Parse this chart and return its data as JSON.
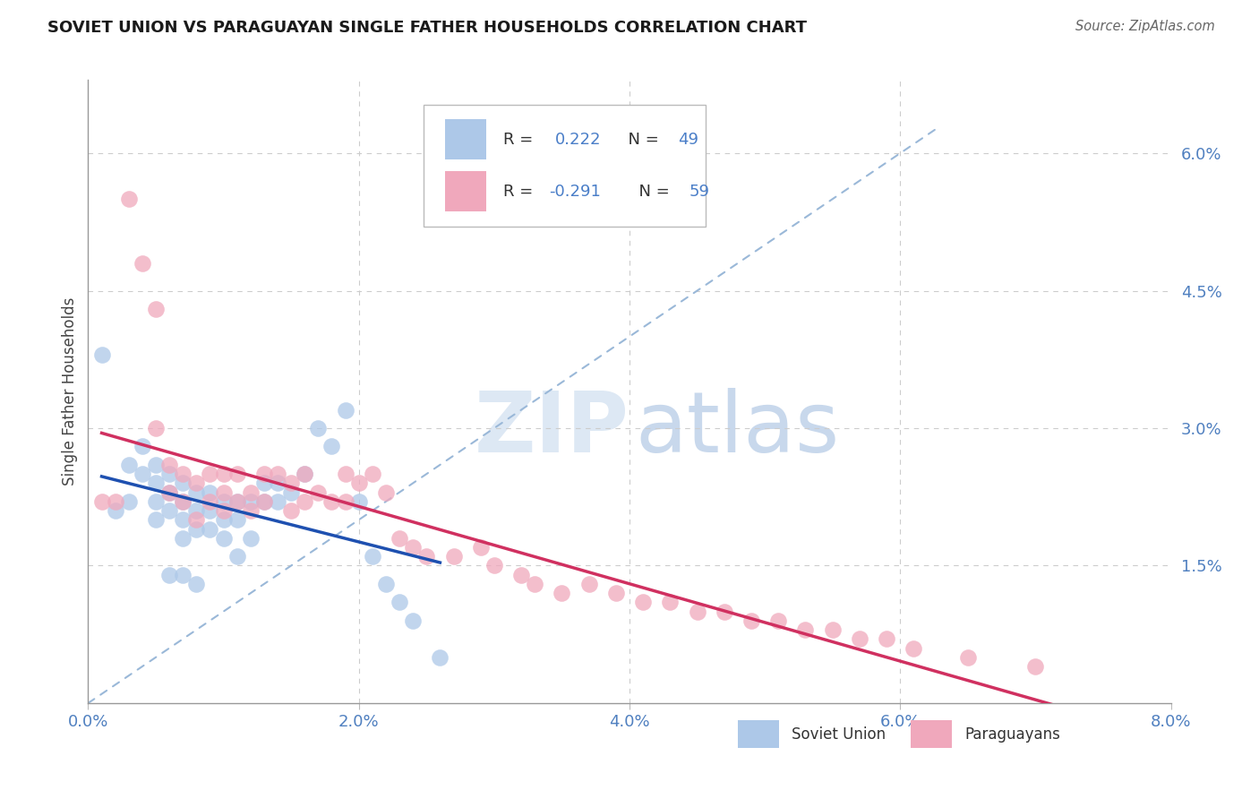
{
  "title": "SOVIET UNION VS PARAGUAYAN SINGLE FATHER HOUSEHOLDS CORRELATION CHART",
  "source": "Source: ZipAtlas.com",
  "ylabel": "Single Father Households",
  "xlim": [
    0.0,
    0.08
  ],
  "ylim": [
    0.0,
    0.068
  ],
  "xticks": [
    0.0,
    0.02,
    0.04,
    0.06,
    0.08
  ],
  "xtick_labels": [
    "0.0%",
    "2.0%",
    "4.0%",
    "6.0%",
    "8.0%"
  ],
  "yticks_right": [
    0.0,
    0.015,
    0.03,
    0.045,
    0.06
  ],
  "ytick_labels_right": [
    "",
    "1.5%",
    "3.0%",
    "4.5%",
    "6.0%"
  ],
  "soviet_R": "0.222",
  "soviet_N": "49",
  "paraguay_R": "-0.291",
  "paraguay_N": "59",
  "soviet_color": "#adc8e8",
  "paraguay_color": "#f0a8bc",
  "soviet_line_color": "#1e50b0",
  "paraguay_line_color": "#d03060",
  "diagonal_color": "#9ab8d8",
  "grid_color": "#cccccc",
  "background_color": "#ffffff",
  "soviet_x": [
    0.001,
    0.002,
    0.003,
    0.003,
    0.004,
    0.004,
    0.005,
    0.005,
    0.005,
    0.005,
    0.006,
    0.006,
    0.006,
    0.006,
    0.007,
    0.007,
    0.007,
    0.007,
    0.007,
    0.008,
    0.008,
    0.008,
    0.008,
    0.009,
    0.009,
    0.009,
    0.01,
    0.01,
    0.01,
    0.011,
    0.011,
    0.011,
    0.012,
    0.012,
    0.013,
    0.013,
    0.014,
    0.014,
    0.015,
    0.016,
    0.017,
    0.018,
    0.019,
    0.02,
    0.021,
    0.022,
    0.023,
    0.024,
    0.026
  ],
  "soviet_y": [
    0.038,
    0.021,
    0.026,
    0.022,
    0.028,
    0.025,
    0.026,
    0.024,
    0.022,
    0.02,
    0.025,
    0.023,
    0.021,
    0.014,
    0.024,
    0.022,
    0.02,
    0.018,
    0.014,
    0.023,
    0.021,
    0.019,
    0.013,
    0.023,
    0.021,
    0.019,
    0.022,
    0.02,
    0.018,
    0.022,
    0.02,
    0.016,
    0.022,
    0.018,
    0.024,
    0.022,
    0.024,
    0.022,
    0.023,
    0.025,
    0.03,
    0.028,
    0.032,
    0.022,
    0.016,
    0.013,
    0.011,
    0.009,
    0.005
  ],
  "paraguay_x": [
    0.001,
    0.002,
    0.003,
    0.004,
    0.005,
    0.005,
    0.006,
    0.006,
    0.007,
    0.007,
    0.008,
    0.008,
    0.009,
    0.009,
    0.01,
    0.01,
    0.01,
    0.011,
    0.011,
    0.012,
    0.012,
    0.013,
    0.013,
    0.014,
    0.015,
    0.015,
    0.016,
    0.016,
    0.017,
    0.018,
    0.019,
    0.019,
    0.02,
    0.021,
    0.022,
    0.023,
    0.024,
    0.025,
    0.027,
    0.029,
    0.03,
    0.032,
    0.033,
    0.035,
    0.037,
    0.039,
    0.041,
    0.043,
    0.045,
    0.047,
    0.049,
    0.051,
    0.053,
    0.055,
    0.057,
    0.059,
    0.061,
    0.065,
    0.07
  ],
  "paraguay_y": [
    0.022,
    0.022,
    0.055,
    0.048,
    0.043,
    0.03,
    0.026,
    0.023,
    0.025,
    0.022,
    0.024,
    0.02,
    0.025,
    0.022,
    0.025,
    0.023,
    0.021,
    0.025,
    0.022,
    0.023,
    0.021,
    0.025,
    0.022,
    0.025,
    0.024,
    0.021,
    0.025,
    0.022,
    0.023,
    0.022,
    0.025,
    0.022,
    0.024,
    0.025,
    0.023,
    0.018,
    0.017,
    0.016,
    0.016,
    0.017,
    0.015,
    0.014,
    0.013,
    0.012,
    0.013,
    0.012,
    0.011,
    0.011,
    0.01,
    0.01,
    0.009,
    0.009,
    0.008,
    0.008,
    0.007,
    0.007,
    0.006,
    0.005,
    0.004
  ]
}
